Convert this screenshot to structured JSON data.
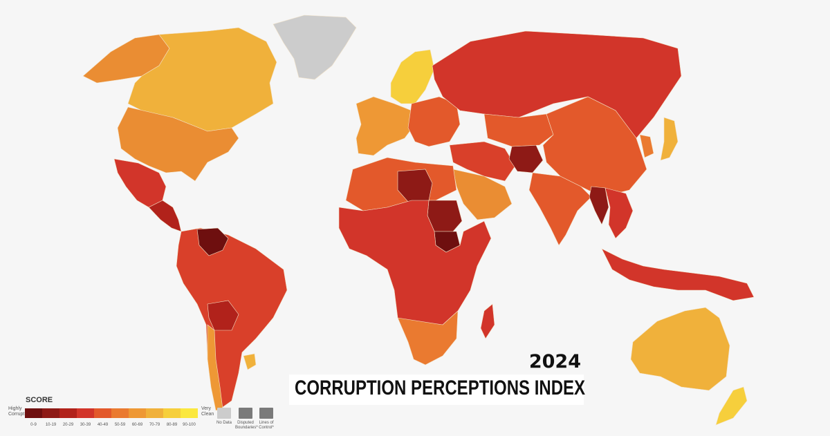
{
  "header": {
    "year": "2024",
    "title": "CORRUPTION PERCEPTIONS INDEX"
  },
  "legend": {
    "title": "SCORE",
    "low_label": "Highly Corrupt",
    "high_label": "Very Clean",
    "bands": [
      {
        "label": "0-9",
        "color": "#6e0f0f"
      },
      {
        "label": "10-19",
        "color": "#8e1a16"
      },
      {
        "label": "20-29",
        "color": "#b1221b"
      },
      {
        "label": "30-39",
        "color": "#d2352a"
      },
      {
        "label": "40-49",
        "color": "#e3592b"
      },
      {
        "label": "50-59",
        "color": "#ea7a30"
      },
      {
        "label": "60-69",
        "color": "#ee9835"
      },
      {
        "label": "70-79",
        "color": "#f0b13b"
      },
      {
        "label": "80-89",
        "color": "#f6cf3c"
      },
      {
        "label": "90-100",
        "color": "#fbe83f"
      }
    ],
    "special": [
      {
        "label": "No Data",
        "color": "#cccccc"
      },
      {
        "label": "Disputed Boundaries*",
        "color": "#7a7a7a"
      },
      {
        "label": "Lines of Control*",
        "color": "#7a7a7a"
      }
    ]
  },
  "regions": [
    {
      "name": "canada",
      "color": "#f0b13b"
    },
    {
      "name": "alaska",
      "color": "#ea8d33"
    },
    {
      "name": "usa",
      "color": "#ea8d33"
    },
    {
      "name": "mexico",
      "color": "#d2352a"
    },
    {
      "name": "central-america",
      "color": "#b1221b"
    },
    {
      "name": "greenland",
      "color": "#cccccc"
    },
    {
      "name": "south-america",
      "color": "#d9402a"
    },
    {
      "name": "venezuela",
      "color": "#6e0f0f"
    },
    {
      "name": "bolivia",
      "color": "#b1221b"
    },
    {
      "name": "chile",
      "color": "#ee9835"
    },
    {
      "name": "uruguay",
      "color": "#f0b13b"
    },
    {
      "name": "scandinavia",
      "color": "#f6cf3c"
    },
    {
      "name": "western-europe",
      "color": "#ee9835"
    },
    {
      "name": "eastern-europe",
      "color": "#e3592b"
    },
    {
      "name": "russia",
      "color": "#d2352a"
    },
    {
      "name": "middle-east",
      "color": "#d9402a"
    },
    {
      "name": "arabia",
      "color": "#ea8d33"
    },
    {
      "name": "afghanistan",
      "color": "#8e1a16"
    },
    {
      "name": "north-africa",
      "color": "#e3592b"
    },
    {
      "name": "libya",
      "color": "#8e1a16"
    },
    {
      "name": "sudan",
      "color": "#8e1a16"
    },
    {
      "name": "south-sudan",
      "color": "#6e0f0f"
    },
    {
      "name": "africa",
      "color": "#d2352a"
    },
    {
      "name": "southern-africa",
      "color": "#ea7a30"
    },
    {
      "name": "madagascar",
      "color": "#d2352a"
    },
    {
      "name": "central-asia",
      "color": "#e3592b"
    },
    {
      "name": "india",
      "color": "#e3592b"
    },
    {
      "name": "china",
      "color": "#e3592b"
    },
    {
      "name": "myanmar",
      "color": "#8e1a16"
    },
    {
      "name": "southeast-asia",
      "color": "#d2352a"
    },
    {
      "name": "japan",
      "color": "#f0b13b"
    },
    {
      "name": "korea",
      "color": "#ea7a30"
    },
    {
      "name": "indonesia",
      "color": "#d2352a"
    },
    {
      "name": "australia",
      "color": "#f0b13b"
    },
    {
      "name": "new-zealand",
      "color": "#f6cf3c"
    }
  ]
}
